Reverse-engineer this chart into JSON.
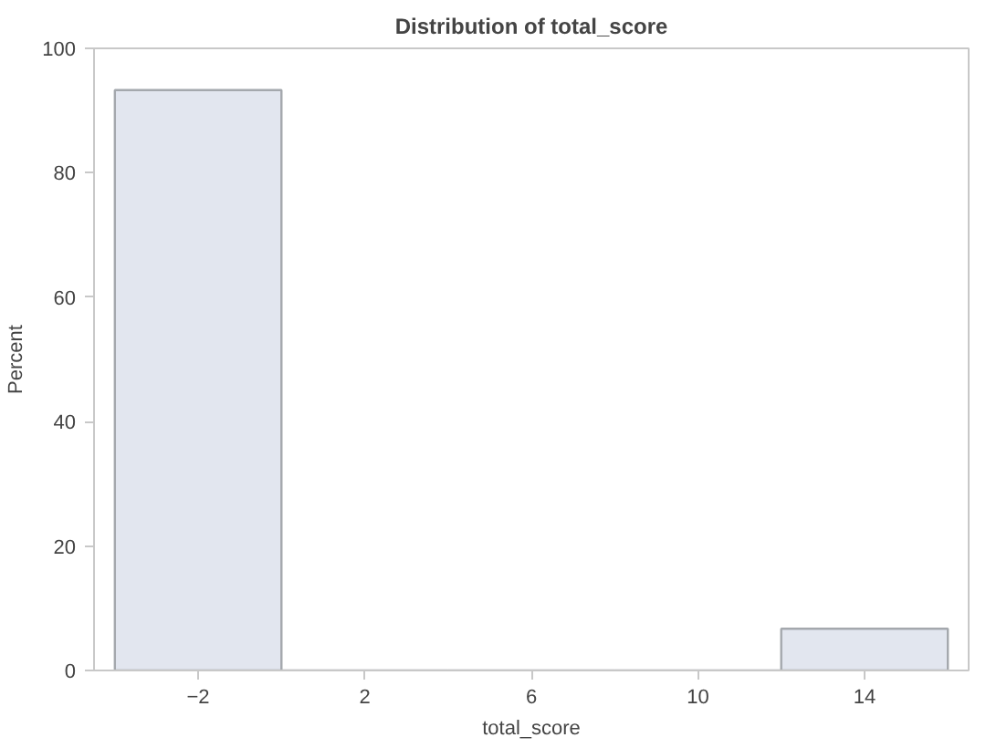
{
  "chart_data": {
    "type": "histogram",
    "title": "Distribution of total_score",
    "xlabel": "total_score",
    "ylabel": "Percent",
    "bins": [
      -4,
      0,
      4,
      8,
      12,
      16
    ],
    "values": [
      93.3,
      0,
      0,
      0,
      6.7
    ],
    "color": "#e2e6ef",
    "xlim": [
      -4.5,
      16.5
    ],
    "ylim": [
      0,
      100
    ],
    "xticks": [
      -2,
      2,
      6,
      10,
      14
    ],
    "yticks": [
      0,
      20,
      40,
      60,
      80,
      100
    ],
    "grid": false
  }
}
